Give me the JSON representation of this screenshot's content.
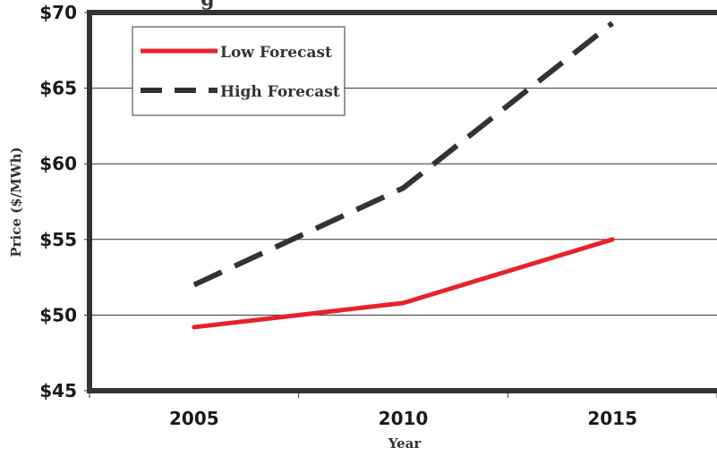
{
  "chart_data": {
    "type": "line",
    "title": "g",
    "xlabel": "Year",
    "ylabel": "Price ($/MWh)",
    "x": [
      2005,
      2010,
      2015
    ],
    "x_tick_labels": [
      "2005",
      "2010",
      "2015"
    ],
    "y_tick_labels": [
      "$45",
      "$50",
      "$55",
      "$60",
      "$65",
      "$70"
    ],
    "y_ticks": [
      45,
      50,
      55,
      60,
      65,
      70
    ],
    "ylim": [
      45,
      70
    ],
    "xlim": [
      2002.5,
      2017.5
    ],
    "grid": "horizontal",
    "legend_position": "top-left",
    "series": [
      {
        "name": "Low Forecast",
        "values": [
          49.2,
          50.8,
          55.0
        ],
        "color": "#e8222a",
        "style": "solid"
      },
      {
        "name": "High Forecast",
        "values": [
          52.0,
          58.4,
          69.3
        ],
        "color": "#333333",
        "style": "dashed"
      }
    ]
  }
}
